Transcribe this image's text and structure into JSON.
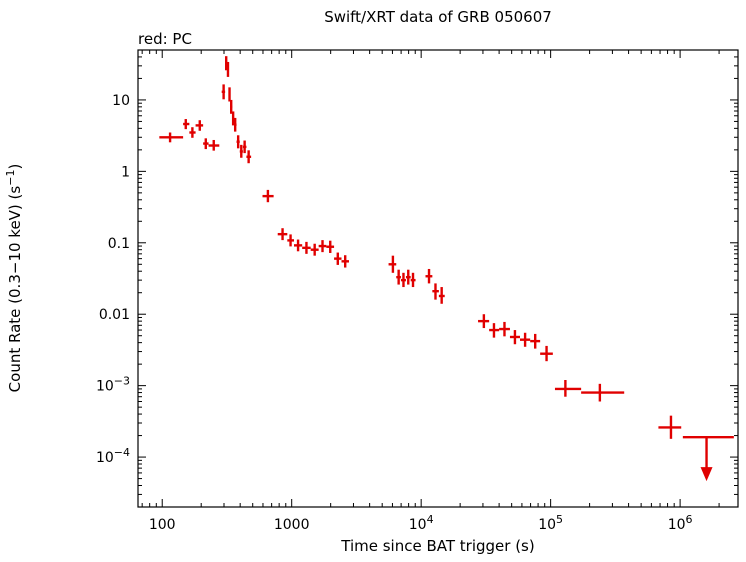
{
  "chart_data": {
    "type": "scatter",
    "title": "Swift/XRT data of GRB 050607",
    "legend_label": "red: PC",
    "xlabel": "Time since BAT trigger (s)",
    "ylabel": "Count Rate (0.3−10 keV) (s^{−1})",
    "xscale": "log",
    "yscale": "log",
    "xlim": [
      65,
      2800000
    ],
    "ylim": [
      2e-05,
      50
    ],
    "grid": false,
    "marker": "cross-with-error-bars",
    "color": "#e00000",
    "x_ticks": [
      {
        "value": 100,
        "label": "100"
      },
      {
        "value": 1000,
        "label": "1000"
      },
      {
        "value": 10000,
        "label": "10^{4}"
      },
      {
        "value": 100000,
        "label": "10^{5}"
      },
      {
        "value": 1000000,
        "label": "10^{6}"
      }
    ],
    "y_ticks": [
      {
        "value": 10,
        "label": "10"
      },
      {
        "value": 1,
        "label": "1"
      },
      {
        "value": 0.1,
        "label": "0.1"
      },
      {
        "value": 0.01,
        "label": "0.01"
      },
      {
        "value": 0.001,
        "label": "10^{−3}"
      },
      {
        "value": 0.0001,
        "label": "10^{−4}"
      }
    ],
    "points_format": [
      "t",
      "t_lo",
      "t_hi",
      "rate",
      "rate_lo",
      "rate_hi"
    ],
    "points": [
      [
        115,
        95,
        145,
        3.0,
        2.55,
        3.5
      ],
      [
        152,
        145,
        162,
        4.6,
        3.9,
        5.4
      ],
      [
        171,
        162,
        181,
        3.5,
        2.95,
        4.15
      ],
      [
        195,
        181,
        207,
        4.4,
        3.7,
        5.2
      ],
      [
        217,
        207,
        228,
        2.45,
        2.05,
        2.9
      ],
      [
        250,
        228,
        276,
        2.3,
        1.95,
        2.75
      ],
      [
        298,
        288,
        306,
        13,
        10.2,
        16.5
      ],
      [
        312,
        306,
        318,
        33,
        26,
        41
      ],
      [
        322,
        318,
        327,
        27,
        21,
        34
      ],
      [
        331,
        327,
        336,
        12,
        9.5,
        15
      ],
      [
        341,
        336,
        347,
        8.0,
        6.4,
        10.0
      ],
      [
        353,
        347,
        359,
        5.5,
        4.4,
        6.9
      ],
      [
        366,
        359,
        375,
        4.5,
        3.6,
        5.6
      ],
      [
        386,
        375,
        397,
        2.6,
        2.1,
        3.2
      ],
      [
        408,
        397,
        420,
        1.9,
        1.55,
        2.35
      ],
      [
        433,
        420,
        447,
        2.2,
        1.8,
        2.7
      ],
      [
        465,
        447,
        486,
        1.6,
        1.3,
        1.97
      ],
      [
        655,
        595,
        725,
        0.45,
        0.37,
        0.55
      ],
      [
        850,
        780,
        925,
        0.132,
        0.109,
        0.16
      ],
      [
        980,
        925,
        1042,
        0.108,
        0.089,
        0.131
      ],
      [
        1120,
        1042,
        1205,
        0.092,
        0.076,
        0.111
      ],
      [
        1300,
        1205,
        1402,
        0.085,
        0.07,
        0.103
      ],
      [
        1505,
        1402,
        1615,
        0.08,
        0.066,
        0.097
      ],
      [
        1730,
        1615,
        1852,
        0.09,
        0.074,
        0.109
      ],
      [
        1985,
        1852,
        2125,
        0.088,
        0.072,
        0.107
      ],
      [
        2270,
        2125,
        2425,
        0.06,
        0.049,
        0.073
      ],
      [
        2590,
        2425,
        2770,
        0.055,
        0.045,
        0.067
      ],
      [
        6050,
        5600,
        6420,
        0.05,
        0.038,
        0.066
      ],
      [
        6700,
        6420,
        6980,
        0.033,
        0.026,
        0.042
      ],
      [
        7300,
        6980,
        7630,
        0.03,
        0.024,
        0.038
      ],
      [
        7950,
        7630,
        8300,
        0.033,
        0.026,
        0.042
      ],
      [
        8650,
        8300,
        9050,
        0.03,
        0.024,
        0.038
      ],
      [
        11500,
        10800,
        12200,
        0.034,
        0.027,
        0.043
      ],
      [
        12900,
        12200,
        13700,
        0.021,
        0.016,
        0.027
      ],
      [
        14400,
        13700,
        15200,
        0.018,
        0.014,
        0.024
      ],
      [
        30500,
        27500,
        33500,
        0.008,
        0.0064,
        0.01
      ],
      [
        36500,
        33500,
        40000,
        0.006,
        0.0047,
        0.0075
      ],
      [
        44000,
        40000,
        48500,
        0.0062,
        0.0049,
        0.0078
      ],
      [
        53000,
        48500,
        58000,
        0.0048,
        0.0038,
        0.006
      ],
      [
        63500,
        58000,
        69500,
        0.0044,
        0.0035,
        0.0055
      ],
      [
        76000,
        69500,
        83000,
        0.0042,
        0.0033,
        0.0053
      ],
      [
        93000,
        83000,
        104000,
        0.0028,
        0.0022,
        0.0036
      ],
      [
        130000,
        108000,
        172000,
        0.0009,
        0.0007,
        0.0012
      ],
      [
        240000,
        172000,
        370000,
        0.0008,
        0.0006,
        0.00106
      ],
      [
        850000,
        680000,
        1020000,
        0.00026,
        0.00018,
        0.00038
      ]
    ],
    "upper_limits_format": [
      "t",
      "t_lo",
      "t_hi",
      "rate"
    ],
    "upper_limits": [
      [
        1600000,
        1050000,
        2600000,
        0.00019
      ]
    ]
  }
}
